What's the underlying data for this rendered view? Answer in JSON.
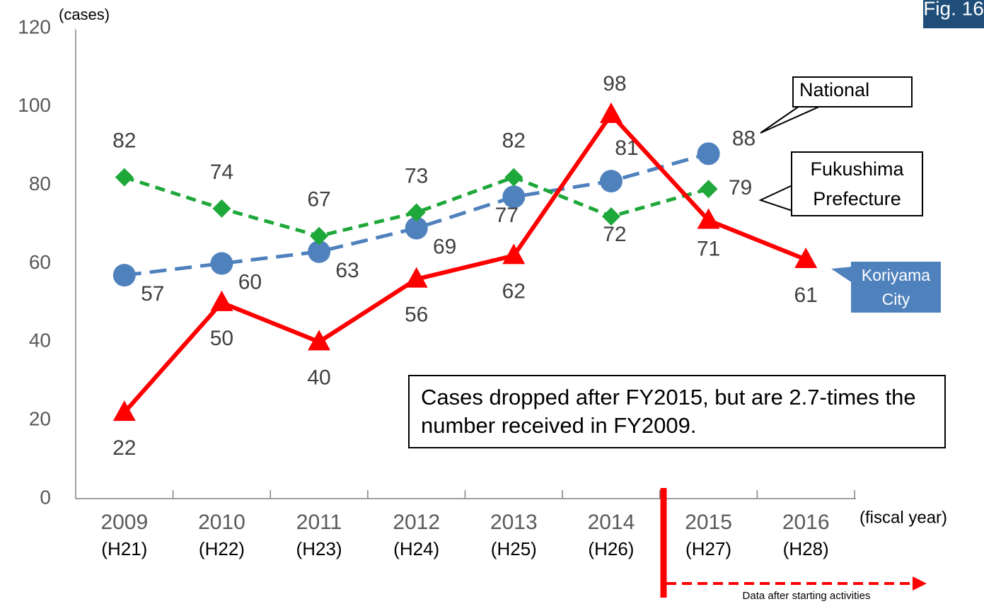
{
  "chart_data": {
    "type": "line",
    "figure_label": "Fig. 16",
    "y_unit_label": "(cases)",
    "x_unit_label": "(fiscal year)",
    "categories": [
      "2009",
      "2010",
      "2011",
      "2012",
      "2013",
      "2014",
      "2015",
      "2016"
    ],
    "era_labels": [
      "(H21)",
      "(H22)",
      "(H23)",
      "(H24)",
      "(H25)",
      "(H26)",
      "(H27)",
      "(H28)"
    ],
    "series": [
      {
        "name": "National",
        "color": "#4f81bd",
        "marker": "circle",
        "dashed": true,
        "values": [
          57,
          60,
          63,
          69,
          77,
          81,
          88,
          null
        ]
      },
      {
        "name": "Fukushima Prefecture",
        "color": "#1fa83a",
        "marker": "diamond",
        "dashed": true,
        "values": [
          82,
          74,
          67,
          73,
          82,
          72,
          79,
          null
        ]
      },
      {
        "name": "Koriyama City",
        "color": "#ff0000",
        "marker": "triangle",
        "dashed": false,
        "values": [
          22,
          50,
          40,
          56,
          62,
          98,
          71,
          61
        ]
      }
    ],
    "ylim": [
      0,
      120
    ],
    "yticks": [
      0,
      20,
      40,
      60,
      80,
      100,
      120
    ],
    "grid": false,
    "annotation": "Cases dropped after FY2015, but are 2.7-times the number received in FY2009.",
    "activity_note": "Data after starting activities"
  }
}
